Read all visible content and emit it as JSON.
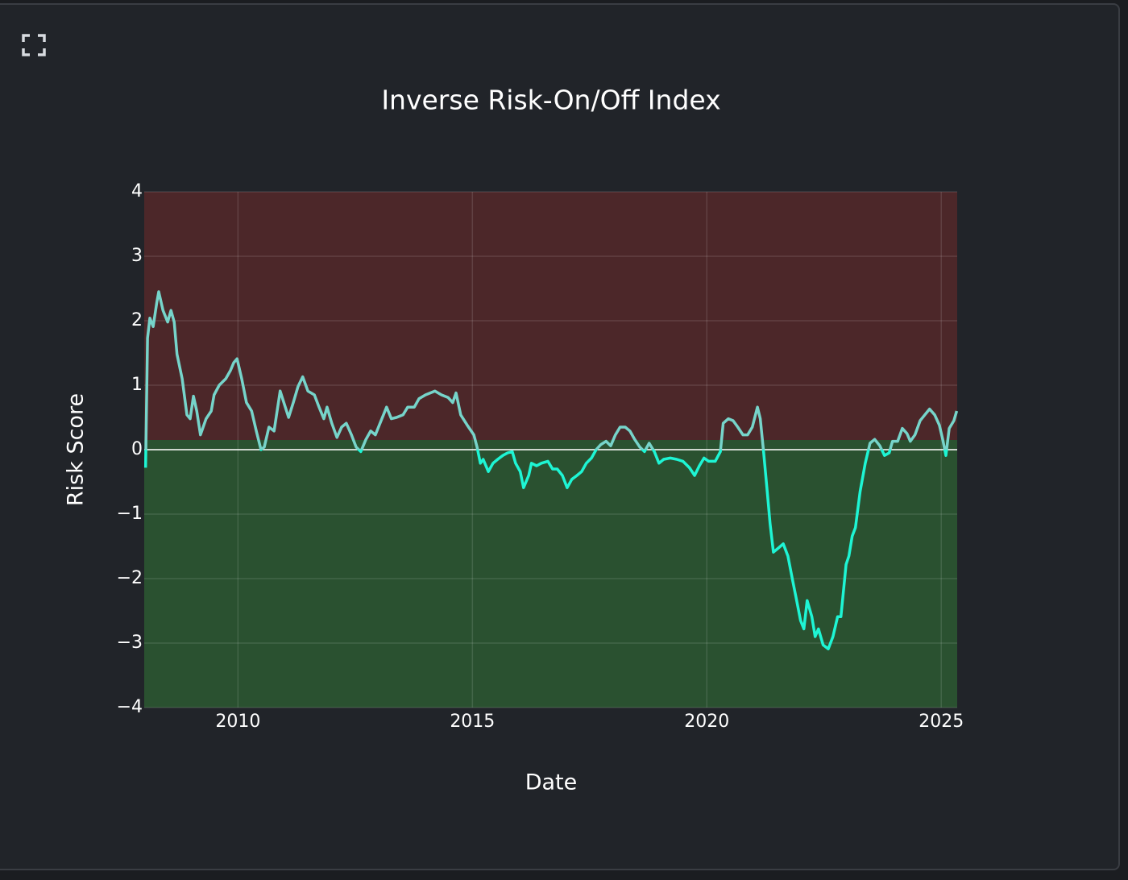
{
  "chart_data": {
    "type": "line",
    "title": "Inverse Risk-On/Off Index",
    "x_label": "Date",
    "y_label": "Risk Score",
    "xlim": [
      2008,
      2025.34
    ],
    "xticks": [
      2010,
      2015,
      2020,
      2025
    ],
    "ylim": [
      -4,
      4
    ],
    "yticks": [
      {
        "value": -4,
        "label": "−4"
      },
      {
        "value": -3,
        "label": "−3"
      },
      {
        "value": -2,
        "label": "−2"
      },
      {
        "value": -1,
        "label": "−1"
      },
      0,
      1,
      2,
      3,
      4
    ],
    "grid": true,
    "zones": [
      {
        "from": 0.15,
        "to": 4,
        "color": "#4c2729"
      },
      {
        "from": -4,
        "to": 0.15,
        "color": "#2a5130"
      }
    ],
    "hline": 0,
    "hline_color": "#ffffff",
    "series": [
      {
        "color_above": "#76d4ca",
        "color_below": "#1ef5d4",
        "x": [
          2008.03,
          2008.07,
          2008.12,
          2008.19,
          2008.27,
          2008.31,
          2008.4,
          2008.5,
          2008.57,
          2008.64,
          2008.7,
          2008.81,
          2008.91,
          2008.98,
          2009.05,
          2009.12,
          2009.2,
          2009.32,
          2009.43,
          2009.49,
          2009.6,
          2009.74,
          2009.84,
          2009.91,
          2009.98,
          2010.08,
          2010.18,
          2010.29,
          2010.39,
          2010.49,
          2010.56,
          2010.66,
          2010.77,
          2010.9,
          2011.01,
          2011.08,
          2011.18,
          2011.28,
          2011.38,
          2011.49,
          2011.63,
          2011.73,
          2011.83,
          2011.9,
          2012.0,
          2012.11,
          2012.21,
          2012.31,
          2012.42,
          2012.52,
          2012.62,
          2012.73,
          2012.83,
          2012.93,
          2013.03,
          2013.17,
          2013.27,
          2013.38,
          2013.52,
          2013.62,
          2013.76,
          2013.86,
          2014.0,
          2014.1,
          2014.2,
          2014.34,
          2014.48,
          2014.58,
          2014.65,
          2014.75,
          2014.89,
          2015.03,
          2015.1,
          2015.17,
          2015.23,
          2015.34,
          2015.44,
          2015.54,
          2015.65,
          2015.75,
          2015.85,
          2015.92,
          2016.02,
          2016.09,
          2016.2,
          2016.26,
          2016.37,
          2016.47,
          2016.61,
          2016.71,
          2016.81,
          2016.92,
          2017.02,
          2017.12,
          2017.23,
          2017.33,
          2017.43,
          2017.54,
          2017.64,
          2017.74,
          2017.85,
          2017.95,
          2018.05,
          2018.15,
          2018.26,
          2018.36,
          2018.46,
          2018.57,
          2018.67,
          2018.77,
          2018.88,
          2018.98,
          2019.08,
          2019.22,
          2019.36,
          2019.49,
          2019.63,
          2019.74,
          2019.84,
          2019.94,
          2020.04,
          2020.18,
          2020.29,
          2020.35,
          2020.46,
          2020.56,
          2020.66,
          2020.77,
          2020.87,
          2020.97,
          2021.08,
          2021.14,
          2021.21,
          2021.28,
          2021.35,
          2021.42,
          2021.52,
          2021.63,
          2021.73,
          2021.83,
          2021.9,
          2022.0,
          2022.07,
          2022.14,
          2022.24,
          2022.31,
          2022.38,
          2022.48,
          2022.59,
          2022.69,
          2022.79,
          2022.86,
          2022.97,
          2023.03,
          2023.1,
          2023.17,
          2023.27,
          2023.38,
          2023.48,
          2023.58,
          2023.69,
          2023.79,
          2023.89,
          2023.96,
          2024.07,
          2024.17,
          2024.27,
          2024.34,
          2024.44,
          2024.55,
          2024.65,
          2024.75,
          2024.86,
          2024.96,
          2025.03,
          2025.1,
          2025.17,
          2025.27,
          2025.33
        ],
        "values": [
          -0.28,
          1.73,
          2.04,
          1.91,
          2.29,
          2.45,
          2.16,
          1.98,
          2.16,
          1.98,
          1.48,
          1.1,
          0.54,
          0.48,
          0.83,
          0.6,
          0.23,
          0.48,
          0.6,
          0.85,
          1.0,
          1.1,
          1.23,
          1.35,
          1.41,
          1.1,
          0.73,
          0.6,
          0.29,
          0.0,
          0.04,
          0.35,
          0.29,
          0.91,
          0.66,
          0.5,
          0.73,
          0.98,
          1.13,
          0.91,
          0.85,
          0.66,
          0.48,
          0.66,
          0.41,
          0.19,
          0.35,
          0.41,
          0.23,
          0.04,
          -0.03,
          0.16,
          0.29,
          0.23,
          0.41,
          0.66,
          0.48,
          0.5,
          0.54,
          0.66,
          0.66,
          0.79,
          0.85,
          0.88,
          0.91,
          0.85,
          0.81,
          0.73,
          0.88,
          0.54,
          0.38,
          0.23,
          0.04,
          -0.21,
          -0.15,
          -0.34,
          -0.21,
          -0.15,
          -0.09,
          -0.05,
          -0.03,
          -0.21,
          -0.34,
          -0.59,
          -0.4,
          -0.21,
          -0.25,
          -0.21,
          -0.18,
          -0.3,
          -0.3,
          -0.4,
          -0.59,
          -0.46,
          -0.4,
          -0.34,
          -0.21,
          -0.13,
          0.0,
          0.08,
          0.13,
          0.06,
          0.23,
          0.35,
          0.35,
          0.29,
          0.16,
          0.04,
          -0.03,
          0.1,
          -0.03,
          -0.21,
          -0.15,
          -0.13,
          -0.15,
          -0.18,
          -0.28,
          -0.4,
          -0.25,
          -0.13,
          -0.18,
          -0.18,
          -0.03,
          0.41,
          0.48,
          0.45,
          0.35,
          0.23,
          0.23,
          0.35,
          0.66,
          0.48,
          -0.03,
          -0.59,
          -1.15,
          -1.59,
          -1.53,
          -1.46,
          -1.65,
          -2.03,
          -2.28,
          -2.65,
          -2.78,
          -2.34,
          -2.59,
          -2.9,
          -2.78,
          -3.03,
          -3.09,
          -2.9,
          -2.59,
          -2.59,
          -1.78,
          -1.65,
          -1.34,
          -1.21,
          -0.65,
          -0.21,
          0.1,
          0.16,
          0.06,
          -0.09,
          -0.05,
          0.13,
          0.13,
          0.33,
          0.25,
          0.13,
          0.23,
          0.45,
          0.54,
          0.63,
          0.54,
          0.38,
          0.16,
          -0.09,
          0.33,
          0.45,
          0.6
        ]
      }
    ]
  }
}
